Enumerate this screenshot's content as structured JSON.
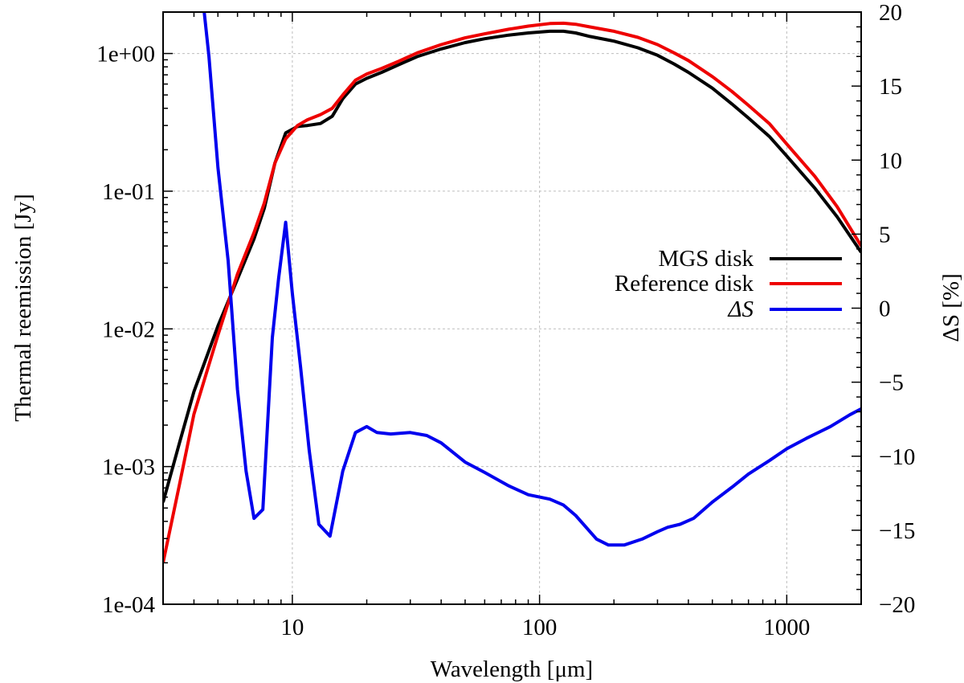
{
  "chart_data": {
    "type": "line",
    "xlabel": "Wavelength [μm]",
    "ylabel": "Thermal reemission [Jy]",
    "y2label": "ΔS [%]",
    "xscale": "log",
    "yscale": "log",
    "xlim": [
      3,
      2000
    ],
    "ylim": [
      0.0001,
      2
    ],
    "y2lim": [
      -20,
      20
    ],
    "grid": true,
    "legend_position": "right",
    "x_ticks": [
      {
        "value": 10,
        "label": "10"
      },
      {
        "value": 100,
        "label": "100"
      },
      {
        "value": 1000,
        "label": "1000"
      }
    ],
    "y_ticks": [
      {
        "value": 0.0001,
        "label": "1e-04"
      },
      {
        "value": 0.001,
        "label": "1e-03"
      },
      {
        "value": 0.01,
        "label": "1e-02"
      },
      {
        "value": 0.1,
        "label": "1e-01"
      },
      {
        "value": 1,
        "label": "1e+00"
      }
    ],
    "y2_ticks": [
      {
        "value": 20,
        "label": "20"
      },
      {
        "value": 15,
        "label": "15"
      },
      {
        "value": 10,
        "label": "10"
      },
      {
        "value": 5,
        "label": "5"
      },
      {
        "value": 0,
        "label": "0"
      },
      {
        "value": -5,
        "label": "−5"
      },
      {
        "value": -10,
        "label": "−10"
      },
      {
        "value": -15,
        "label": "−15"
      },
      {
        "value": -20,
        "label": "−20"
      }
    ],
    "series": [
      {
        "name": "MGS disk",
        "axis": "left",
        "color": "#000000",
        "x": [
          3,
          3.5,
          4,
          5,
          6,
          7,
          7.7,
          8.5,
          9.4,
          10.5,
          11.5,
          13,
          14.5,
          16,
          18,
          20,
          23,
          27,
          32,
          40,
          50,
          60,
          75,
          90,
          110,
          125,
          140,
          160,
          200,
          250,
          300,
          350,
          400,
          500,
          600,
          700,
          850,
          1000,
          1300,
          1600,
          2000
        ],
        "y": [
          0.00055,
          0.0015,
          0.0035,
          0.0105,
          0.023,
          0.045,
          0.075,
          0.16,
          0.265,
          0.295,
          0.3,
          0.31,
          0.35,
          0.47,
          0.6,
          0.66,
          0.73,
          0.83,
          0.95,
          1.08,
          1.2,
          1.28,
          1.36,
          1.41,
          1.45,
          1.45,
          1.41,
          1.33,
          1.23,
          1.1,
          0.97,
          0.84,
          0.73,
          0.56,
          0.43,
          0.34,
          0.25,
          0.18,
          0.105,
          0.065,
          0.036
        ]
      },
      {
        "name": "Reference disk",
        "axis": "left",
        "color": "#ee0000",
        "x": [
          3,
          3.5,
          4,
          5,
          6,
          7,
          7.7,
          8.5,
          9.4,
          10.5,
          11.5,
          13,
          14.5,
          16,
          18,
          20,
          23,
          27,
          32,
          40,
          50,
          60,
          75,
          90,
          110,
          125,
          140,
          160,
          200,
          250,
          300,
          350,
          400,
          500,
          600,
          700,
          850,
          1000,
          1300,
          1600,
          2000
        ],
        "y": [
          0.0002,
          0.00075,
          0.0024,
          0.009,
          0.025,
          0.05,
          0.082,
          0.16,
          0.24,
          0.3,
          0.33,
          0.36,
          0.4,
          0.5,
          0.64,
          0.71,
          0.78,
          0.88,
          1.01,
          1.16,
          1.3,
          1.39,
          1.5,
          1.58,
          1.65,
          1.66,
          1.63,
          1.56,
          1.45,
          1.31,
          1.16,
          1.01,
          0.89,
          0.68,
          0.53,
          0.42,
          0.31,
          0.22,
          0.128,
          0.077,
          0.04
        ]
      },
      {
        "name": "ΔS",
        "axis": "right",
        "color": "#0000ee",
        "x": [
          4.4,
          4.6,
          5.0,
          5.5,
          6.0,
          6.5,
          7.0,
          7.6,
          8.3,
          8.8,
          9.4,
          10.0,
          10.8,
          11.7,
          12.8,
          14.2,
          16.0,
          18.0,
          20.0,
          22.0,
          25.0,
          30.0,
          35.0,
          40.0,
          50.0,
          60.0,
          75.0,
          90.0,
          110.0,
          125.0,
          140.0,
          170.0,
          190.0,
          220.0,
          260.0,
          300.0,
          330.0,
          370.0,
          420.0,
          500.0,
          600.0,
          700.0,
          850.0,
          1000.0,
          1200.0,
          1500.0,
          1800.0,
          2000.0
        ],
        "y": [
          20.0,
          17.0,
          9.5,
          3.2,
          -5.5,
          -11.0,
          -14.2,
          -13.6,
          -2.0,
          2.0,
          5.8,
          1.0,
          -4.0,
          -9.6,
          -14.6,
          -15.4,
          -11.0,
          -8.4,
          -8.0,
          -8.4,
          -8.5,
          -8.4,
          -8.6,
          -9.1,
          -10.4,
          -11.1,
          -12.0,
          -12.6,
          -12.9,
          -13.3,
          -14.0,
          -15.6,
          -16.0,
          -16.0,
          -15.6,
          -15.1,
          -14.8,
          -14.6,
          -14.2,
          -13.1,
          -12.1,
          -11.2,
          -10.3,
          -9.5,
          -8.8,
          -8.0,
          -7.2,
          -6.8
        ]
      }
    ]
  }
}
